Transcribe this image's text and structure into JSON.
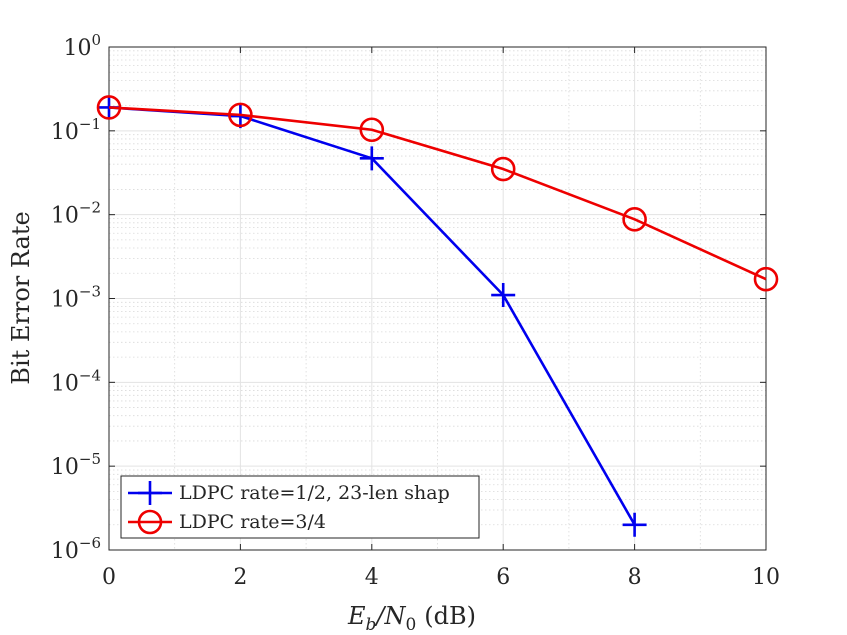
{
  "chart_data": {
    "type": "line",
    "xlabel": "E_b/N_0 (dB)",
    "xlabel_parts": {
      "E": "E",
      "b": "b",
      "N": "N",
      "zero": "0",
      "unit": "(dB)"
    },
    "ylabel": "Bit Error Rate",
    "xlim": [
      0,
      10
    ],
    "ylim_log10": [
      -6,
      0
    ],
    "y_scale": "log",
    "grid": true,
    "minor_grid": true,
    "legend_position": "bottom-left",
    "x_ticks": [
      {
        "value": 0,
        "label": "0"
      },
      {
        "value": 2,
        "label": "2"
      },
      {
        "value": 4,
        "label": "4"
      },
      {
        "value": 6,
        "label": "6"
      },
      {
        "value": 8,
        "label": "8"
      },
      {
        "value": 10,
        "label": "10"
      }
    ],
    "y_ticks": [
      {
        "exp": 0,
        "base": "10",
        "power": "0"
      },
      {
        "exp": -1,
        "base": "10",
        "power": "−1"
      },
      {
        "exp": -2,
        "base": "10",
        "power": "−2"
      },
      {
        "exp": -3,
        "base": "10",
        "power": "−3"
      },
      {
        "exp": -4,
        "base": "10",
        "power": "−4"
      },
      {
        "exp": -5,
        "base": "10",
        "power": "−5"
      },
      {
        "exp": -6,
        "base": "10",
        "power": "−6"
      }
    ],
    "series": [
      {
        "name": "LDPC rate=1/2, 23-len shap",
        "color": "#0000ee",
        "marker": "plus",
        "x": [
          0,
          2,
          4,
          6,
          8
        ],
        "y": [
          0.19,
          0.15,
          0.047,
          0.0011,
          2e-06
        ]
      },
      {
        "name": "LDPC rate=3/4",
        "color": "#ee0000",
        "marker": "circle",
        "x": [
          0,
          2,
          4,
          6,
          8,
          10
        ],
        "y": [
          0.19,
          0.155,
          0.103,
          0.035,
          0.0088,
          0.0017
        ]
      }
    ]
  }
}
